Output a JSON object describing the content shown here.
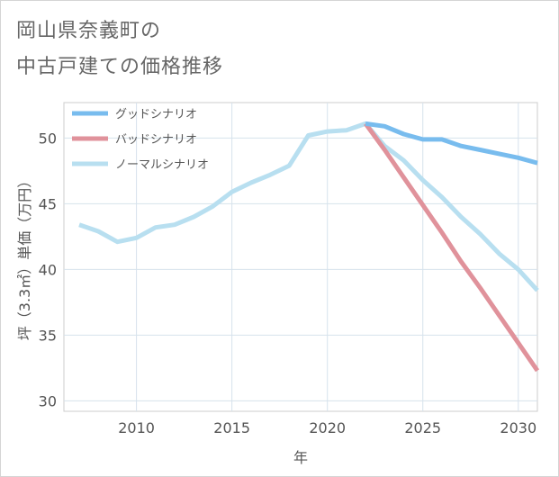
{
  "title_lines": [
    "岡山県奈義町の",
    "中古戸建ての価格推移"
  ],
  "chart_data": {
    "type": "line",
    "xlabel": "年",
    "ylabel": "坪（3.3㎡）単価（万円）",
    "xlim": [
      2006.2,
      2031
    ],
    "ylim": [
      29.2,
      52.7
    ],
    "xticks": [
      2010,
      2015,
      2020,
      2025,
      2030
    ],
    "yticks": [
      30,
      35,
      40,
      45,
      50
    ],
    "grid": true,
    "legend_position": "top-left",
    "series": [
      {
        "name": "グッドシナリオ",
        "color": "#78bcee",
        "x": [
          2022,
          2023,
          2024,
          2025,
          2026,
          2027,
          2028,
          2029,
          2030,
          2031
        ],
        "y": [
          51.1,
          50.9,
          50.3,
          49.9,
          49.9,
          49.4,
          49.1,
          48.8,
          48.5,
          48.1
        ]
      },
      {
        "name": "バッドシナリオ",
        "color": "#e0929b",
        "x": [
          2022,
          2023,
          2024,
          2025,
          2026,
          2027,
          2028,
          2029,
          2030,
          2031
        ],
        "y": [
          51.1,
          49.1,
          47.0,
          44.9,
          42.8,
          40.6,
          38.6,
          36.5,
          34.4,
          32.3
        ]
      },
      {
        "name": "ノーマルシナリオ",
        "color": "#b8dff0",
        "x": [
          2007,
          2008,
          2009,
          2010,
          2011,
          2012,
          2013,
          2014,
          2015,
          2016,
          2017,
          2018,
          2019,
          2020,
          2021,
          2022,
          2023,
          2024,
          2025,
          2026,
          2027,
          2028,
          2029,
          2030,
          2031
        ],
        "y": [
          43.4,
          42.9,
          42.1,
          42.4,
          43.2,
          43.4,
          44.0,
          44.8,
          45.9,
          46.6,
          47.2,
          47.9,
          50.2,
          50.5,
          50.6,
          51.1,
          49.4,
          48.3,
          46.8,
          45.5,
          44.0,
          42.7,
          41.2,
          40.0,
          38.4
        ]
      }
    ]
  }
}
